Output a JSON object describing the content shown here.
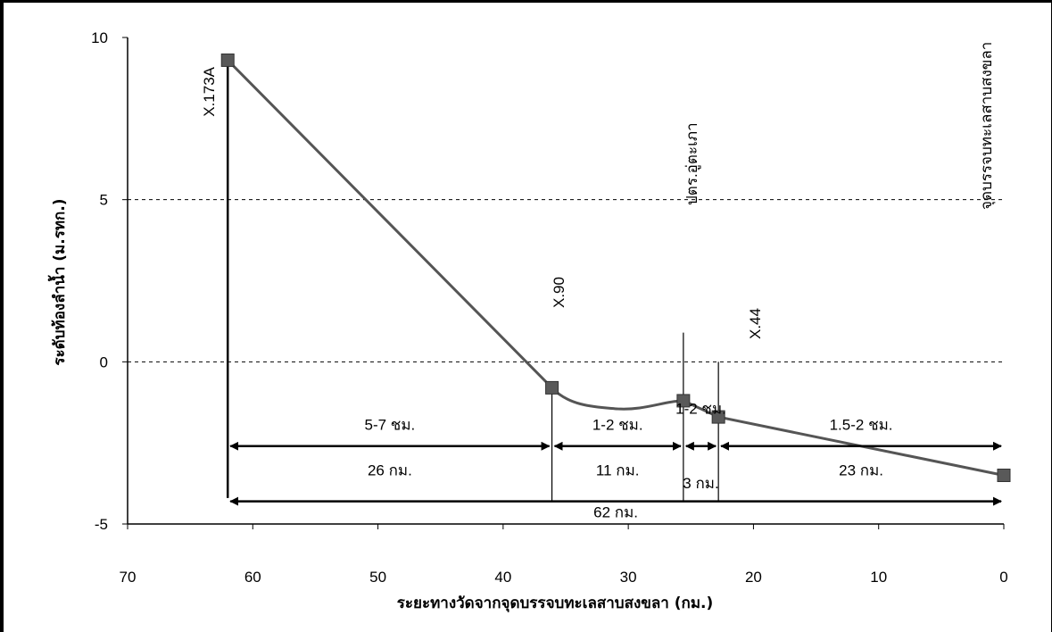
{
  "chart_data": {
    "type": "line",
    "xlabel": "ระยะทางวัดจากจุดบรรจบทะเลสาบสงขลา (กม.)",
    "ylabel": "ระดับท้องลำน้ำ (ม.รทก.)",
    "xlim": [
      70,
      0
    ],
    "ylim": [
      -5,
      10
    ],
    "x_ticks": [
      70,
      60,
      50,
      40,
      30,
      20,
      10,
      0
    ],
    "y_ticks": [
      10,
      5,
      0,
      -5
    ],
    "x_tick_labels": [
      "70",
      "60",
      "50",
      "40",
      "30",
      "20",
      "10",
      "0"
    ],
    "y_tick_labels": [
      "10",
      "5",
      "0",
      "-5"
    ],
    "gridlines": {
      "y": [
        5,
        0
      ],
      "style": "dashed"
    },
    "series": [
      {
        "color": "#555555",
        "marker": "square",
        "points": [
          {
            "x": 62,
            "y": 9.3
          },
          {
            "x": 36.1,
            "y": -0.8
          },
          {
            "x": 25.6,
            "y": -1.2
          },
          {
            "x": 22.8,
            "y": -1.7
          },
          {
            "x": 0,
            "y": -3.5
          }
        ]
      }
    ],
    "stations": [
      {
        "label": "X.173A",
        "x": 62
      },
      {
        "label": "X.90",
        "x": 36.1
      },
      {
        "label": "ปตร.อู่ตะเภา",
        "x": 25.6
      },
      {
        "label": "X.44",
        "x": 22.8
      },
      {
        "label": "จุดบรรจบทะเลสาบสงขลา",
        "x": 0
      }
    ],
    "segments": [
      {
        "travel_time": "5-7 ชม.",
        "distance": "26 กม.",
        "from": 62,
        "to": 36.1
      },
      {
        "travel_time": "1-2 ชม.",
        "distance": "11 กม.",
        "from": 36.1,
        "to": 25.6
      },
      {
        "travel_time": "1-2 ชม.",
        "distance": "3 กม.",
        "from": 25.6,
        "to": 22.8
      },
      {
        "travel_time": "1.5-2 ชม.",
        "distance": "23 กม.",
        "from": 22.8,
        "to": 0
      }
    ],
    "total": {
      "distance": "62 กม.",
      "from": 62,
      "to": 0
    }
  }
}
